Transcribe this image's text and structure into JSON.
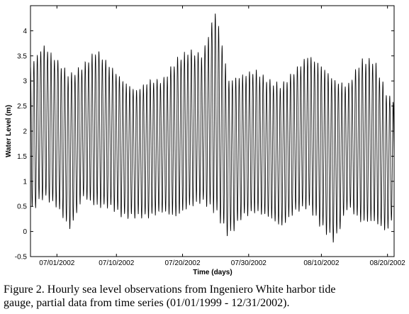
{
  "chart_data": {
    "type": "line",
    "xlabel": "Time (days)",
    "ylabel": "Water Level (m)",
    "x_range": [
      "2002-06-27",
      "2002-08-21"
    ],
    "ylim": [
      -0.5,
      4.5
    ],
    "yticks": [
      -0.5,
      0,
      0.5,
      1,
      1.5,
      2,
      2.5,
      3,
      3.5,
      4
    ],
    "xtick_labels": [
      "07/01/2002",
      "07/10/2002",
      "07/20/2002",
      "07/30/2002",
      "08/10/2002",
      "08/20/2002"
    ],
    "xtick_dates": [
      "2002-07-01",
      "2002-07-10",
      "2002-07-20",
      "2002-07-30",
      "2002-08-10",
      "2002-08-20"
    ],
    "series": [
      {
        "sampling": "hourly",
        "color": "#000000",
        "semidiurnal_extremes": [
          {
            "date": "2002-06-27",
            "high_m": 3.3,
            "low_m": 0.4
          },
          {
            "date": "2002-06-29",
            "high_m": 3.7,
            "low_m": 0.7
          },
          {
            "date": "2002-07-01",
            "high_m": 3.4,
            "low_m": 0.5
          },
          {
            "date": "2002-07-03",
            "high_m": 3.1,
            "low_m": 0.05
          },
          {
            "date": "2002-07-05",
            "high_m": 3.3,
            "low_m": 0.7
          },
          {
            "date": "2002-07-07",
            "high_m": 3.6,
            "low_m": 0.5
          },
          {
            "date": "2002-07-09",
            "high_m": 3.3,
            "low_m": 0.5
          },
          {
            "date": "2002-07-11",
            "high_m": 3.0,
            "low_m": 0.3
          },
          {
            "date": "2002-07-13",
            "high_m": 2.8,
            "low_m": 0.3
          },
          {
            "date": "2002-07-15",
            "high_m": 3.0,
            "low_m": 0.3
          },
          {
            "date": "2002-07-17",
            "high_m": 3.0,
            "low_m": 0.4
          },
          {
            "date": "2002-07-19",
            "high_m": 3.4,
            "low_m": 0.3
          },
          {
            "date": "2002-07-21",
            "high_m": 3.6,
            "low_m": 0.5
          },
          {
            "date": "2002-07-23",
            "high_m": 3.5,
            "low_m": 0.6
          },
          {
            "date": "2002-07-25",
            "high_m": 4.4,
            "low_m": 0.4
          },
          {
            "date": "2002-07-27",
            "high_m": 3.0,
            "low_m": -0.1
          },
          {
            "date": "2002-07-29",
            "high_m": 3.1,
            "low_m": 0.3
          },
          {
            "date": "2002-07-31",
            "high_m": 3.2,
            "low_m": 0.4
          },
          {
            "date": "2002-08-02",
            "high_m": 3.0,
            "low_m": 0.3
          },
          {
            "date": "2002-08-04",
            "high_m": 2.9,
            "low_m": 0.1
          },
          {
            "date": "2002-08-06",
            "high_m": 3.2,
            "low_m": 0.4
          },
          {
            "date": "2002-08-08",
            "high_m": 3.5,
            "low_m": 0.5
          },
          {
            "date": "2002-08-10",
            "high_m": 3.3,
            "low_m": 0.1
          },
          {
            "date": "2002-08-12",
            "high_m": 3.0,
            "low_m": -0.2
          },
          {
            "date": "2002-08-14",
            "high_m": 2.9,
            "low_m": 0.5
          },
          {
            "date": "2002-08-16",
            "high_m": 3.4,
            "low_m": 0.2
          },
          {
            "date": "2002-08-18",
            "high_m": 3.4,
            "low_m": 0.2
          },
          {
            "date": "2002-08-20",
            "high_m": 2.7,
            "low_m": 0.0
          },
          {
            "date": "2002-08-21",
            "high_m": 2.6,
            "low_m": 0.4
          }
        ]
      }
    ]
  },
  "caption": {
    "line1": "Figure 2. Hourly sea level observations from Ingeniero White harbor tide",
    "line2": "gauge, partial data from time series (01/01/1999 - 12/31/2002)."
  }
}
